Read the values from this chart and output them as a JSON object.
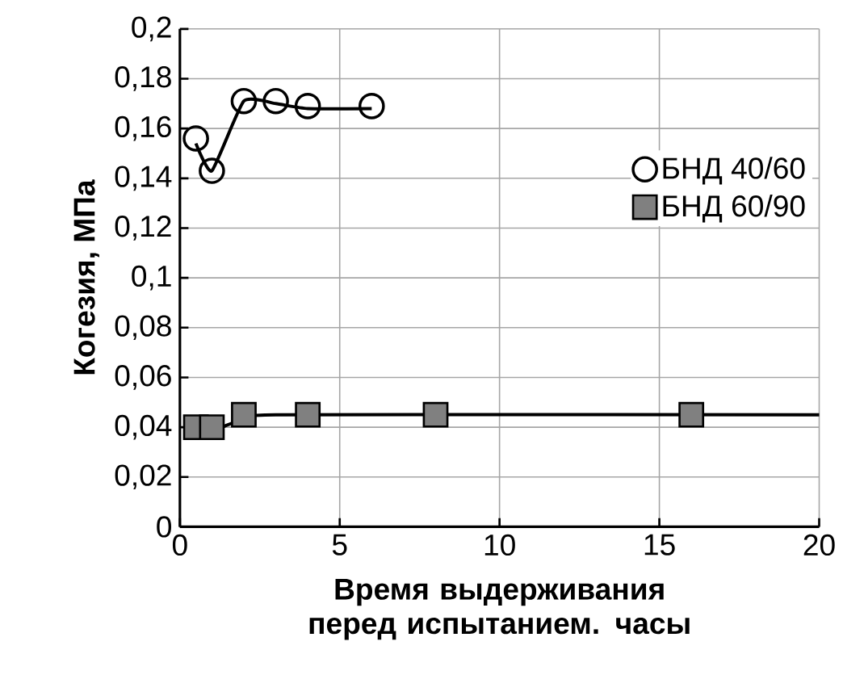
{
  "chart_data": {
    "type": "scatter",
    "xlabel": "Время выдерживания перед испытанием. часы",
    "ylabel": "Когезия, МПа",
    "xlim": [
      0,
      20
    ],
    "xticks": [
      0,
      5,
      10,
      15,
      20
    ],
    "ylim": [
      0,
      0.2
    ],
    "yticks": [
      {
        "value": 0,
        "label": "0"
      },
      {
        "value": 0.02,
        "label": "0,02"
      },
      {
        "value": 0.04,
        "label": "0,04"
      },
      {
        "value": 0.06,
        "label": "0,06"
      },
      {
        "value": 0.08,
        "label": "0,08"
      },
      {
        "value": 0.1,
        "label": "0,1"
      },
      {
        "value": 0.12,
        "label": "0,12"
      },
      {
        "value": 0.14,
        "label": "0,14"
      },
      {
        "value": 0.16,
        "label": "0,16"
      },
      {
        "value": 0.18,
        "label": "0,18"
      },
      {
        "value": 0.2,
        "label": "0,2"
      }
    ],
    "grid": true,
    "legend": "right",
    "series": [
      {
        "name": "БНД 40/60",
        "marker": "circle",
        "color": "#000000",
        "x": [
          0.5,
          1,
          2,
          3,
          4,
          6
        ],
        "values": [
          0.156,
          0.143,
          0.171,
          0.171,
          0.169,
          0.169
        ]
      },
      {
        "name": "БНД 60/90",
        "marker": "square",
        "color": "#808080",
        "x": [
          0.5,
          1,
          2,
          4,
          8,
          16
        ],
        "values": [
          0.04,
          0.04,
          0.045,
          0.045,
          0.045,
          0.045
        ]
      },
      {
        "type": "line",
        "color": "#000000",
        "x": [
          0.5,
          1,
          2,
          3,
          4,
          6
        ],
        "values": [
          0.154,
          0.143,
          0.171,
          0.17,
          0.168,
          0.168
        ]
      },
      {
        "type": "line",
        "color": "#000000",
        "x": [
          0.8,
          1.5,
          2,
          3,
          20
        ],
        "values": [
          0.037,
          0.041,
          0.043,
          0.045,
          0.045
        ]
      }
    ]
  }
}
